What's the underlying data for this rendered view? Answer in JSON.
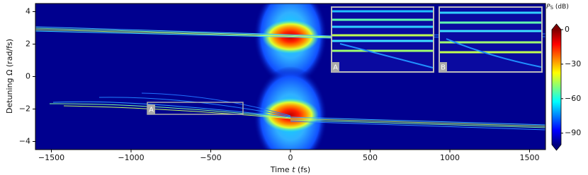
{
  "chart_data": {
    "type": "heatmap",
    "xlabel": [
      "Time",
      "t",
      "(fs)"
    ],
    "ylabel": "Detuning Ω (rad/fs)",
    "xlim": [
      -1600,
      1600
    ],
    "ylim": [
      -4.5,
      4.5
    ],
    "xticks": [
      {
        "value": -1500,
        "label": "−1500"
      },
      {
        "value": -1000,
        "label": "−1000"
      },
      {
        "value": -500,
        "label": "−500"
      },
      0,
      500,
      1000,
      1500
    ],
    "yticks": [
      {
        "value": -4,
        "label": "−4"
      },
      {
        "value": -2,
        "label": "−2"
      },
      0,
      2,
      4
    ],
    "colormap": "jet",
    "colorbar": {
      "label": [
        "P",
        "S",
        "(dB)"
      ],
      "lim": [
        -100,
        0
      ],
      "ticks": [
        {
          "value": -90,
          "label": "−90"
        },
        {
          "value": -60,
          "label": "−60"
        },
        {
          "value": -30,
          "label": "−30"
        },
        0
      ]
    },
    "annotations": [
      "A",
      "A",
      "B"
    ]
  }
}
